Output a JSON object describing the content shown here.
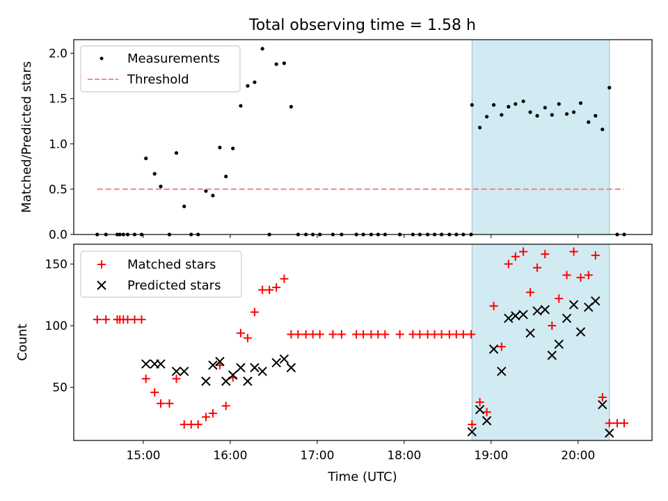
{
  "figure": {
    "title": "Total observing time = 1.58 h",
    "xlabel": "Time (UTC)",
    "xticks": [
      "15:00",
      "16:00",
      "17:00",
      "18:00",
      "19:00",
      "20:00"
    ],
    "xlim_hours": [
      14.2,
      20.85
    ],
    "shaded_interval_hours": [
      18.78,
      20.36
    ],
    "shade_color": "#add8e6"
  },
  "chart_data": [
    {
      "type": "scatter",
      "ylabel": "Matched/Predicted stars",
      "ylim": [
        0,
        2.15
      ],
      "yticks": [
        0.0,
        0.5,
        1.0,
        1.5,
        2.0
      ],
      "ytick_labels": [
        "0.0",
        "0.5",
        "1.0",
        "1.5",
        "2.0"
      ],
      "legend_position": "top-left",
      "series": [
        {
          "name": "Measurements",
          "kind": "points",
          "color": "#000000",
          "points": [
            [
              14.47,
              0
            ],
            [
              14.57,
              0
            ],
            [
              14.7,
              0
            ],
            [
              14.73,
              0
            ],
            [
              14.77,
              0
            ],
            [
              14.82,
              0
            ],
            [
              14.9,
              0
            ],
            [
              14.98,
              0
            ],
            [
              15.03,
              0.84
            ],
            [
              15.13,
              0.67
            ],
            [
              15.2,
              0.53
            ],
            [
              15.3,
              0
            ],
            [
              15.38,
              0.9
            ],
            [
              15.47,
              0.31
            ],
            [
              15.55,
              0
            ],
            [
              15.63,
              0
            ],
            [
              15.72,
              0.48
            ],
            [
              15.8,
              0.43
            ],
            [
              15.88,
              0.96
            ],
            [
              15.95,
              0.64
            ],
            [
              16.03,
              0.95
            ],
            [
              16.12,
              1.42
            ],
            [
              16.2,
              1.64
            ],
            [
              16.28,
              1.68
            ],
            [
              16.37,
              2.05
            ],
            [
              16.45,
              0
            ],
            [
              16.53,
              1.88
            ],
            [
              16.62,
              1.89
            ],
            [
              16.7,
              1.41
            ],
            [
              16.78,
              0
            ],
            [
              16.87,
              0
            ],
            [
              16.95,
              0
            ],
            [
              17.03,
              0
            ],
            [
              17.18,
              0
            ],
            [
              17.28,
              0
            ],
            [
              17.45,
              0
            ],
            [
              17.53,
              0
            ],
            [
              17.62,
              0
            ],
            [
              17.7,
              0
            ],
            [
              17.78,
              0
            ],
            [
              17.95,
              0
            ],
            [
              18.1,
              0
            ],
            [
              18.18,
              0
            ],
            [
              18.27,
              0
            ],
            [
              18.35,
              0
            ],
            [
              18.43,
              0
            ],
            [
              18.52,
              0
            ],
            [
              18.6,
              0
            ],
            [
              18.68,
              0
            ],
            [
              18.77,
              0
            ],
            [
              18.78,
              1.43
            ],
            [
              18.87,
              1.18
            ],
            [
              18.95,
              1.3
            ],
            [
              19.03,
              1.43
            ],
            [
              19.12,
              1.32
            ],
            [
              19.2,
              1.41
            ],
            [
              19.28,
              1.44
            ],
            [
              19.37,
              1.47
            ],
            [
              19.45,
              1.35
            ],
            [
              19.53,
              1.31
            ],
            [
              19.62,
              1.4
            ],
            [
              19.7,
              1.32
            ],
            [
              19.78,
              1.44
            ],
            [
              19.87,
              1.33
            ],
            [
              19.95,
              1.35
            ],
            [
              20.03,
              1.45
            ],
            [
              20.12,
              1.24
            ],
            [
              20.2,
              1.31
            ],
            [
              20.28,
              1.16
            ],
            [
              20.36,
              1.62
            ],
            [
              20.45,
              0
            ],
            [
              20.53,
              0
            ]
          ]
        },
        {
          "name": "Threshold",
          "kind": "dashed-line",
          "color": "#ff7f7f",
          "points": [
            [
              14.47,
              0.5
            ],
            [
              20.53,
              0.5
            ]
          ]
        }
      ]
    },
    {
      "type": "scatter",
      "ylabel": "Count",
      "ylim": [
        7,
        166
      ],
      "yticks": [
        50,
        100,
        150
      ],
      "ytick_labels": [
        "50",
        "100",
        "150"
      ],
      "legend_position": "top-left",
      "series": [
        {
          "name": "Matched stars",
          "marker": "plus",
          "color": "#ff0000",
          "points": [
            [
              14.47,
              105
            ],
            [
              14.57,
              105
            ],
            [
              14.7,
              105
            ],
            [
              14.73,
              105
            ],
            [
              14.77,
              105
            ],
            [
              14.82,
              105
            ],
            [
              14.9,
              105
            ],
            [
              14.98,
              105
            ],
            [
              15.03,
              57
            ],
            [
              15.13,
              46
            ],
            [
              15.2,
              37
            ],
            [
              15.3,
              37
            ],
            [
              15.38,
              57
            ],
            [
              15.47,
              20
            ],
            [
              15.55,
              20
            ],
            [
              15.63,
              20
            ],
            [
              15.72,
              26
            ],
            [
              15.8,
              29
            ],
            [
              15.88,
              68
            ],
            [
              15.95,
              35
            ],
            [
              16.03,
              58
            ],
            [
              16.12,
              94
            ],
            [
              16.2,
              90
            ],
            [
              16.28,
              111
            ],
            [
              16.37,
              129
            ],
            [
              16.45,
              129
            ],
            [
              16.53,
              131
            ],
            [
              16.62,
              138
            ],
            [
              16.7,
              93
            ],
            [
              16.78,
              93
            ],
            [
              16.87,
              93
            ],
            [
              16.95,
              93
            ],
            [
              17.03,
              93
            ],
            [
              17.18,
              93
            ],
            [
              17.28,
              93
            ],
            [
              17.45,
              93
            ],
            [
              17.53,
              93
            ],
            [
              17.62,
              93
            ],
            [
              17.7,
              93
            ],
            [
              17.78,
              93
            ],
            [
              17.95,
              93
            ],
            [
              18.1,
              93
            ],
            [
              18.18,
              93
            ],
            [
              18.27,
              93
            ],
            [
              18.35,
              93
            ],
            [
              18.43,
              93
            ],
            [
              18.52,
              93
            ],
            [
              18.6,
              93
            ],
            [
              18.68,
              93
            ],
            [
              18.77,
              93
            ],
            [
              18.78,
              20
            ],
            [
              18.87,
              38
            ],
            [
              18.95,
              30
            ],
            [
              19.03,
              116
            ],
            [
              19.12,
              83
            ],
            [
              19.2,
              150
            ],
            [
              19.28,
              156
            ],
            [
              19.37,
              160
            ],
            [
              19.45,
              127
            ],
            [
              19.53,
              147
            ],
            [
              19.62,
              158
            ],
            [
              19.7,
              100
            ],
            [
              19.78,
              122
            ],
            [
              19.87,
              141
            ],
            [
              19.95,
              160
            ],
            [
              20.03,
              139
            ],
            [
              20.12,
              141
            ],
            [
              20.2,
              157
            ],
            [
              20.28,
              42
            ],
            [
              20.36,
              21
            ],
            [
              20.45,
              21
            ],
            [
              20.53,
              21
            ]
          ]
        },
        {
          "name": "Predicted stars",
          "marker": "x",
          "color": "#000000",
          "points": [
            [
              15.03,
              69
            ],
            [
              15.13,
              69
            ],
            [
              15.2,
              69
            ],
            [
              15.38,
              63
            ],
            [
              15.47,
              63
            ],
            [
              15.72,
              55
            ],
            [
              15.8,
              68
            ],
            [
              15.88,
              71
            ],
            [
              15.95,
              55
            ],
            [
              16.03,
              60
            ],
            [
              16.12,
              66
            ],
            [
              16.2,
              55
            ],
            [
              16.28,
              66
            ],
            [
              16.37,
              63
            ],
            [
              16.53,
              70
            ],
            [
              16.62,
              73
            ],
            [
              16.7,
              66
            ],
            [
              18.78,
              14
            ],
            [
              18.87,
              32
            ],
            [
              18.95,
              23
            ],
            [
              19.03,
              81
            ],
            [
              19.12,
              63
            ],
            [
              19.2,
              106
            ],
            [
              19.28,
              108
            ],
            [
              19.37,
              109
            ],
            [
              19.45,
              94
            ],
            [
              19.53,
              112
            ],
            [
              19.62,
              113
            ],
            [
              19.7,
              76
            ],
            [
              19.78,
              85
            ],
            [
              19.87,
              106
            ],
            [
              19.95,
              117
            ],
            [
              20.03,
              95
            ],
            [
              20.12,
              115
            ],
            [
              20.2,
              120
            ],
            [
              20.28,
              36
            ],
            [
              20.36,
              13
            ]
          ]
        }
      ]
    }
  ]
}
